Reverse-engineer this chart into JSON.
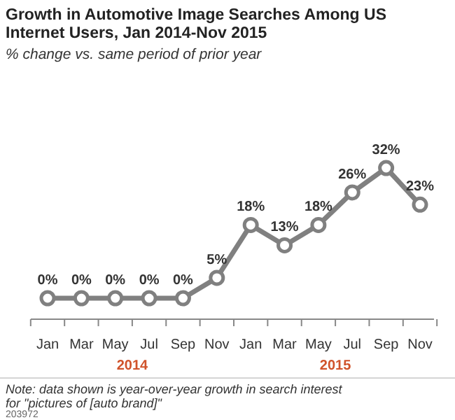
{
  "chart_data": {
    "type": "line",
    "title": "Growth in Automotive Image Searches Among US Internet Users, Jan 2014-Nov 2015",
    "subtitle": "% change vs. same period of prior year",
    "categories": [
      "Jan",
      "Mar",
      "May",
      "Jul",
      "Sep",
      "Nov",
      "Jan",
      "Mar",
      "May",
      "Jul",
      "Sep",
      "Nov"
    ],
    "series": [
      {
        "color": "#808080",
        "values": [
          0,
          0,
          0,
          0,
          0,
          5,
          18,
          13,
          18,
          26,
          32,
          23
        ],
        "value_labels": [
          "0%",
          "0%",
          "0%",
          "0%",
          "0%",
          "5%",
          "18%",
          "13%",
          "18%",
          "26%",
          "32%",
          "23%"
        ]
      }
    ],
    "marker": "circle",
    "tick_labels": "x",
    "annotations": [
      "2014",
      "2015",
      "Note: data shown is year-over-year growth in search interest for \"pictures of [auto brand]\"",
      "203972"
    ]
  }
}
